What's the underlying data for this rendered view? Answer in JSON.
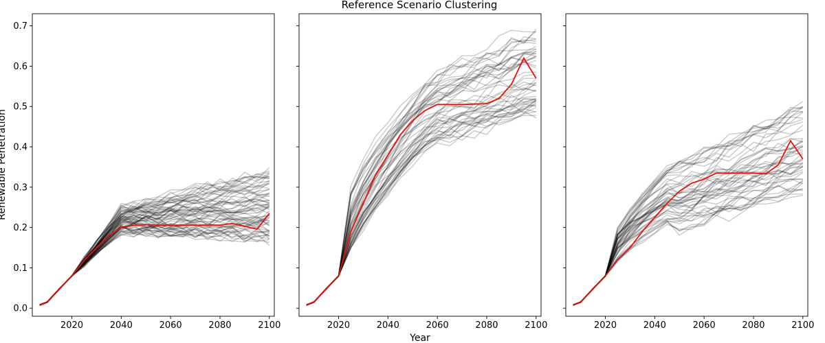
{
  "chart_data": {
    "type": "line",
    "title": "Reference Scenario Clustering",
    "xlabel": "Year",
    "ylabel": "Renewable Penetration",
    "xlim": [
      2004,
      2102
    ],
    "ylim": [
      -0.02,
      0.73
    ],
    "x_ticks": [
      2020,
      2040,
      2060,
      2080,
      2100
    ],
    "y_ticks": [
      0.0,
      0.1,
      0.2,
      0.3,
      0.4,
      0.5,
      0.6,
      0.7
    ],
    "sharey": true,
    "x": [
      2007,
      2010,
      2015,
      2020,
      2025,
      2030,
      2035,
      2040,
      2045,
      2050,
      2055,
      2060,
      2065,
      2070,
      2075,
      2080,
      2085,
      2090,
      2095,
      2100
    ],
    "background_line_color": "#000000",
    "background_line_opacity": 0.2,
    "centroid_color": "#e8120c",
    "panels": [
      {
        "cluster": 1,
        "centroid": [
          0.008,
          0.015,
          0.048,
          0.08,
          0.118,
          0.15,
          0.18,
          0.2,
          0.205,
          0.207,
          0.206,
          0.206,
          0.206,
          0.206,
          0.206,
          0.206,
          0.21,
          0.203,
          0.196,
          0.235
        ],
        "series_count": 70,
        "late_min": 0.17,
        "late_max": 0.34,
        "plateau_start": 2040
      },
      {
        "cluster": 2,
        "centroid": [
          0.008,
          0.015,
          0.048,
          0.08,
          0.19,
          0.26,
          0.33,
          0.38,
          0.43,
          0.465,
          0.49,
          0.505,
          0.505,
          0.505,
          0.506,
          0.507,
          0.52,
          0.555,
          0.62,
          0.57
        ],
        "series_count": 50,
        "late_min": 0.48,
        "late_max": 0.7,
        "plateau_start": 2060
      },
      {
        "cluster": 3,
        "centroid": [
          0.008,
          0.015,
          0.048,
          0.08,
          0.12,
          0.15,
          0.19,
          0.225,
          0.26,
          0.29,
          0.31,
          0.32,
          0.335,
          0.335,
          0.335,
          0.335,
          0.333,
          0.355,
          0.415,
          0.37
        ],
        "series_count": 50,
        "late_min": 0.28,
        "late_max": 0.51,
        "plateau_start": 2050
      }
    ]
  }
}
